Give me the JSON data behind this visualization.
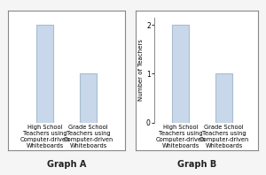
{
  "categories": [
    "High School\nTeachers using\nComputer-driven\nWhiteboards",
    "Grade School\nTeachers using\nComputer-driven\nWhiteboards"
  ],
  "values": [
    2,
    1
  ],
  "bar_color": "#c8d8ea",
  "bar_edgecolor": "#a8bdd0",
  "ylim": [
    0,
    2.15
  ],
  "yticks": [
    0,
    1,
    2
  ],
  "ylabel": "Number of Teachers",
  "graph_a_title": "Graph A",
  "graph_b_title": "Graph B",
  "background": "#f5f5f5",
  "box_bg": "#ffffff",
  "border_color": "#888888",
  "tick_fontsize": 5.5,
  "label_fontsize": 4.8,
  "title_fontsize": 7,
  "ylabel_fontsize": 5,
  "bar_width": 0.38
}
